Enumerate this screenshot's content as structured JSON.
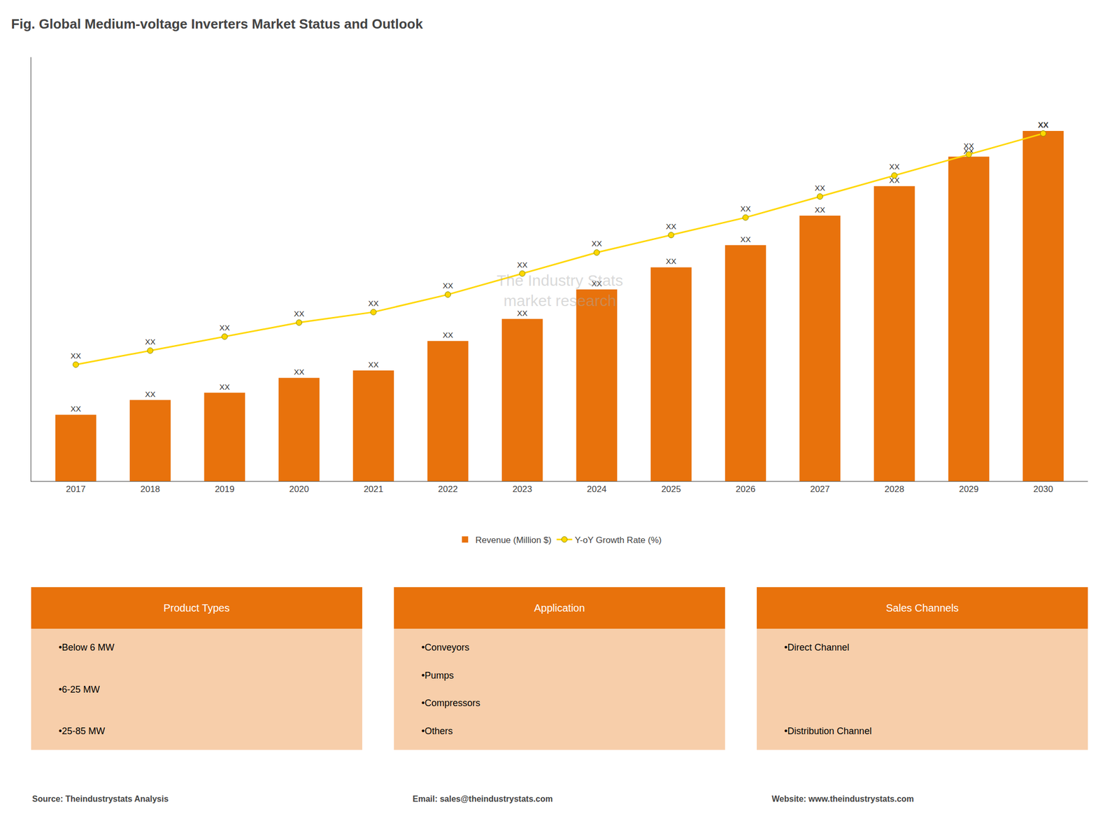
{
  "chart_data": {
    "type": "bar",
    "title": "Fig. Global Medium-voltage Inverters Market Status and Outlook",
    "categories": [
      "2017",
      "2018",
      "2019",
      "2020",
      "2021",
      "2022",
      "2023",
      "2024",
      "2025",
      "2026",
      "2027",
      "2028",
      "2029",
      "2030"
    ],
    "series": [
      {
        "name": "Revenue (Million $)",
        "type": "bar",
        "color": "#E8720C",
        "values": [
          0.18,
          0.22,
          0.24,
          0.28,
          0.3,
          0.38,
          0.44,
          0.52,
          0.58,
          0.64,
          0.72,
          0.8,
          0.88,
          0.95
        ],
        "value_labels": [
          "XX",
          "XX",
          "XX",
          "XX",
          "XX",
          "XX",
          "XX",
          "XX",
          "XX",
          "XX",
          "XX",
          "XX",
          "XX",
          "XX"
        ]
      },
      {
        "name": "Y-oY Growth Rate (%)",
        "type": "line",
        "color": "#FFD700",
        "marker": "circle",
        "values": [
          0.316,
          0.354,
          0.392,
          0.43,
          0.4585,
          0.506,
          0.563,
          0.62,
          0.6675,
          0.715,
          0.772,
          0.829,
          0.886,
          0.943
        ],
        "value_labels": [
          "XX",
          "XX",
          "XX",
          "XX",
          "XX",
          "XX",
          "XX",
          "XX",
          "XX",
          "XX",
          "XX",
          "XX",
          "XX",
          "XX"
        ]
      }
    ],
    "ylim": [
      0,
      1.15
    ],
    "tick_labels": "x",
    "grid": false,
    "legend": "bottom",
    "data_labels": true,
    "watermark": "The Industry Stats\nmarket research",
    "panels": [
      {
        "title": "Product Types",
        "color": "#E8720C",
        "items": [
          "•Below 6 MW",
          "•6-25 MW",
          "•25-85 MW"
        ]
      },
      {
        "title": "Application",
        "color": "#E8720C",
        "items": [
          "•Conveyors",
          "•Pumps",
          "•Compressors",
          "•Others"
        ]
      },
      {
        "title": "Sales Channels",
        "color": "#E8720C",
        "items": [
          "•Direct Channel",
          "•Distribution Channel"
        ]
      }
    ],
    "footer": [
      "Source: Theindustrystats Analysis",
      "Email: sales@theindustrystats.com",
      "Website: www.theindustrystats.com"
    ]
  }
}
